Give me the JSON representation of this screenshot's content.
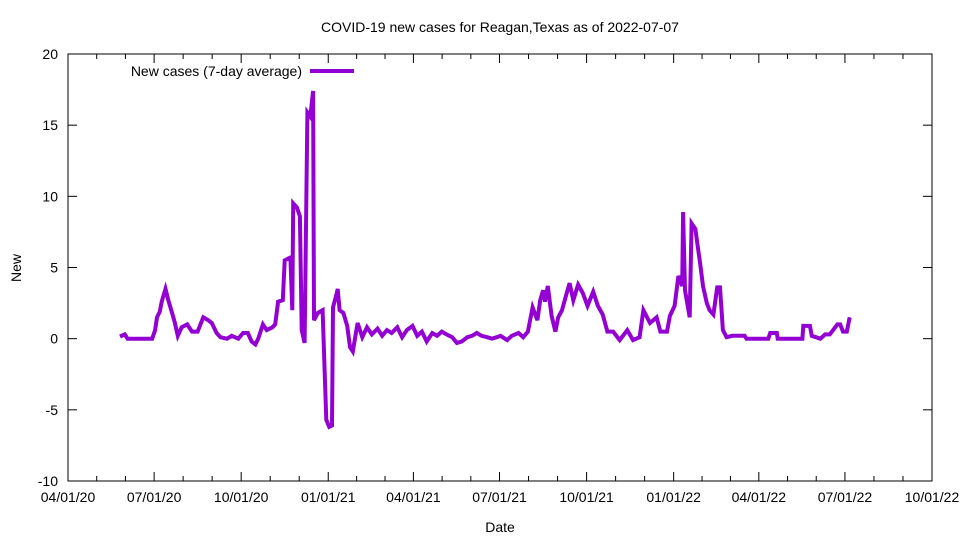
{
  "chart_data": {
    "type": "line",
    "title": "COVID-19 new cases for Reagan,Texas as of 2022-07-07",
    "xlabel": "Date",
    "ylabel": "New",
    "x_origin": "2020-04-01",
    "x_unit": "days since x_origin",
    "xlim": [
      0,
      913
    ],
    "ylim": [
      -10,
      20
    ],
    "yticks": [
      -10,
      -5,
      0,
      5,
      10,
      15,
      20
    ],
    "xticks": [
      {
        "day": 0,
        "label": "04/01/20"
      },
      {
        "day": 91,
        "label": "07/01/20"
      },
      {
        "day": 183,
        "label": "10/01/20"
      },
      {
        "day": 275,
        "label": "01/01/21"
      },
      {
        "day": 365,
        "label": "04/01/21"
      },
      {
        "day": 456,
        "label": "07/01/21"
      },
      {
        "day": 548,
        "label": "10/01/21"
      },
      {
        "day": 640,
        "label": "01/01/22"
      },
      {
        "day": 730,
        "label": "04/01/22"
      },
      {
        "day": 821,
        "label": "07/01/22"
      },
      {
        "day": 913,
        "label": "10/01/22"
      }
    ],
    "legend_position": "top-left",
    "grid": false,
    "series": [
      {
        "name": "New cases (7-day average)",
        "color": "#9400d3",
        "points": [
          [
            55,
            0.15
          ],
          [
            60,
            0.3
          ],
          [
            63,
            0
          ],
          [
            89,
            0
          ],
          [
            92,
            0.6
          ],
          [
            94,
            1.5
          ],
          [
            97,
            1.9
          ],
          [
            99,
            2.6
          ],
          [
            103,
            3.5
          ],
          [
            106,
            2.7
          ],
          [
            110,
            1.8
          ],
          [
            113,
            1.1
          ],
          [
            116,
            0.2
          ],
          [
            120,
            0.8
          ],
          [
            126,
            1.0
          ],
          [
            131,
            0.5
          ],
          [
            137,
            0.5
          ],
          [
            143,
            1.5
          ],
          [
            148,
            1.3
          ],
          [
            152,
            1.1
          ],
          [
            157,
            0.4
          ],
          [
            161,
            0.1
          ],
          [
            168,
            0
          ],
          [
            173,
            0.2
          ],
          [
            180,
            0
          ],
          [
            185,
            0.4
          ],
          [
            190,
            0.4
          ],
          [
            194,
            -0.2
          ],
          [
            198,
            -0.4
          ],
          [
            201,
            0
          ],
          [
            206,
            1.0
          ],
          [
            210,
            0.6
          ],
          [
            216,
            0.8
          ],
          [
            219,
            1.0
          ],
          [
            222,
            2.6
          ],
          [
            227,
            2.7
          ],
          [
            229,
            5.5
          ],
          [
            235,
            5.7
          ],
          [
            237,
            2.0
          ],
          [
            238,
            9.5
          ],
          [
            242,
            9.2
          ],
          [
            245,
            8.6
          ],
          [
            247,
            0.6
          ],
          [
            250,
            -0.3
          ],
          [
            253,
            15.9
          ],
          [
            256,
            15.6
          ],
          [
            259,
            17.4
          ],
          [
            260,
            1.3
          ],
          [
            264,
            1.8
          ],
          [
            269,
            2.0
          ],
          [
            273,
            -5.7
          ],
          [
            276,
            -6.2
          ],
          [
            279,
            -6.1
          ],
          [
            280,
            2.2
          ],
          [
            284,
            3.2
          ],
          [
            285,
            3.5
          ],
          [
            287,
            2.0
          ],
          [
            291,
            1.8
          ],
          [
            295,
            0.9
          ],
          [
            298,
            -0.6
          ],
          [
            301,
            -0.9
          ],
          [
            306,
            1.1
          ],
          [
            311,
            0.1
          ],
          [
            316,
            0.8
          ],
          [
            321,
            0.3
          ],
          [
            327,
            0.7
          ],
          [
            332,
            0.2
          ],
          [
            337,
            0.6
          ],
          [
            342,
            0.4
          ],
          [
            348,
            0.8
          ],
          [
            353,
            0.1
          ],
          [
            358,
            0.6
          ],
          [
            364,
            0.9
          ],
          [
            369,
            0.2
          ],
          [
            374,
            0.5
          ],
          [
            379,
            -0.2
          ],
          [
            385,
            0.4
          ],
          [
            390,
            0.2
          ],
          [
            395,
            0.5
          ],
          [
            400,
            0.3
          ],
          [
            406,
            0.1
          ],
          [
            411,
            -0.3
          ],
          [
            416,
            -0.2
          ],
          [
            422,
            0.1
          ],
          [
            427,
            0.2
          ],
          [
            432,
            0.4
          ],
          [
            437,
            0.2
          ],
          [
            443,
            0.1
          ],
          [
            448,
            0.0
          ],
          [
            453,
            0.1
          ],
          [
            457,
            0.2
          ],
          [
            464,
            -0.1
          ],
          [
            469,
            0.2
          ],
          [
            476,
            0.4
          ],
          [
            481,
            0.1
          ],
          [
            486,
            0.5
          ],
          [
            491,
            2.2
          ],
          [
            496,
            1.3
          ],
          [
            499,
            2.7
          ],
          [
            502,
            3.4
          ],
          [
            504,
            2.6
          ],
          [
            507,
            3.7
          ],
          [
            511,
            1.6
          ],
          [
            515,
            0.5
          ],
          [
            518,
            1.5
          ],
          [
            522,
            2.0
          ],
          [
            527,
            3.2
          ],
          [
            530,
            3.9
          ],
          [
            534,
            2.7
          ],
          [
            539,
            3.8
          ],
          [
            544,
            3.2
          ],
          [
            549,
            2.3
          ],
          [
            555,
            3.3
          ],
          [
            560,
            2.3
          ],
          [
            565,
            1.7
          ],
          [
            570,
            0.5
          ],
          [
            576,
            0.5
          ],
          [
            583,
            -0.1
          ],
          [
            591,
            0.6
          ],
          [
            597,
            -0.1
          ],
          [
            604,
            0.1
          ],
          [
            608,
            2.0
          ],
          [
            615,
            1.1
          ],
          [
            622,
            1.5
          ],
          [
            626,
            0.5
          ],
          [
            633,
            0.5
          ],
          [
            636,
            1.6
          ],
          [
            641,
            2.3
          ],
          [
            645,
            4.4
          ],
          [
            649,
            3.7
          ],
          [
            650,
            8.9
          ],
          [
            652,
            3.4
          ],
          [
            657,
            1.5
          ],
          [
            659,
            8.1
          ],
          [
            663,
            7.7
          ],
          [
            665,
            6.7
          ],
          [
            668,
            5.3
          ],
          [
            671,
            3.7
          ],
          [
            675,
            2.5
          ],
          [
            678,
            2.0
          ],
          [
            682,
            1.7
          ],
          [
            686,
            3.6
          ],
          [
            689,
            3.6
          ],
          [
            692,
            0.6
          ],
          [
            696,
            0.1
          ],
          [
            702,
            0.2
          ],
          [
            715,
            0.2
          ],
          [
            717,
            0
          ],
          [
            740,
            0
          ],
          [
            742,
            0.4
          ],
          [
            749,
            0.4
          ],
          [
            750,
            0
          ],
          [
            776,
            0
          ],
          [
            777,
            0.9
          ],
          [
            784,
            0.9
          ],
          [
            786,
            0.2
          ],
          [
            795,
            0
          ],
          [
            800,
            0.3
          ],
          [
            805,
            0.3
          ],
          [
            813,
            1.0
          ],
          [
            816,
            1.0
          ],
          [
            819,
            0.5
          ],
          [
            823,
            0.5
          ],
          [
            826,
            1.5
          ]
        ]
      }
    ]
  }
}
